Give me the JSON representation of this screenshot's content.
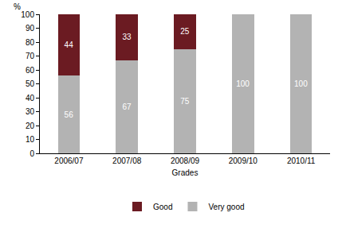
{
  "chart_data": {
    "type": "bar",
    "stacked": true,
    "data_labels": true,
    "grid": false,
    "legend": "bottom",
    "xlabel": "Grades",
    "ylabel": "%",
    "categories": [
      "2006/07",
      "2007/08",
      "2008/09",
      "2009/10",
      "2010/11"
    ],
    "series": [
      {
        "name": "Very good",
        "color": "#b3b3b3",
        "values": [
          56,
          67,
          75,
          100,
          100
        ]
      },
      {
        "name": "Good",
        "color": "#6b1b22",
        "values": [
          44,
          33,
          25,
          null,
          null
        ]
      }
    ],
    "ylim": [
      0,
      100
    ],
    "yticks": [
      0,
      10,
      20,
      30,
      40,
      50,
      60,
      70,
      80,
      90,
      100
    ]
  }
}
